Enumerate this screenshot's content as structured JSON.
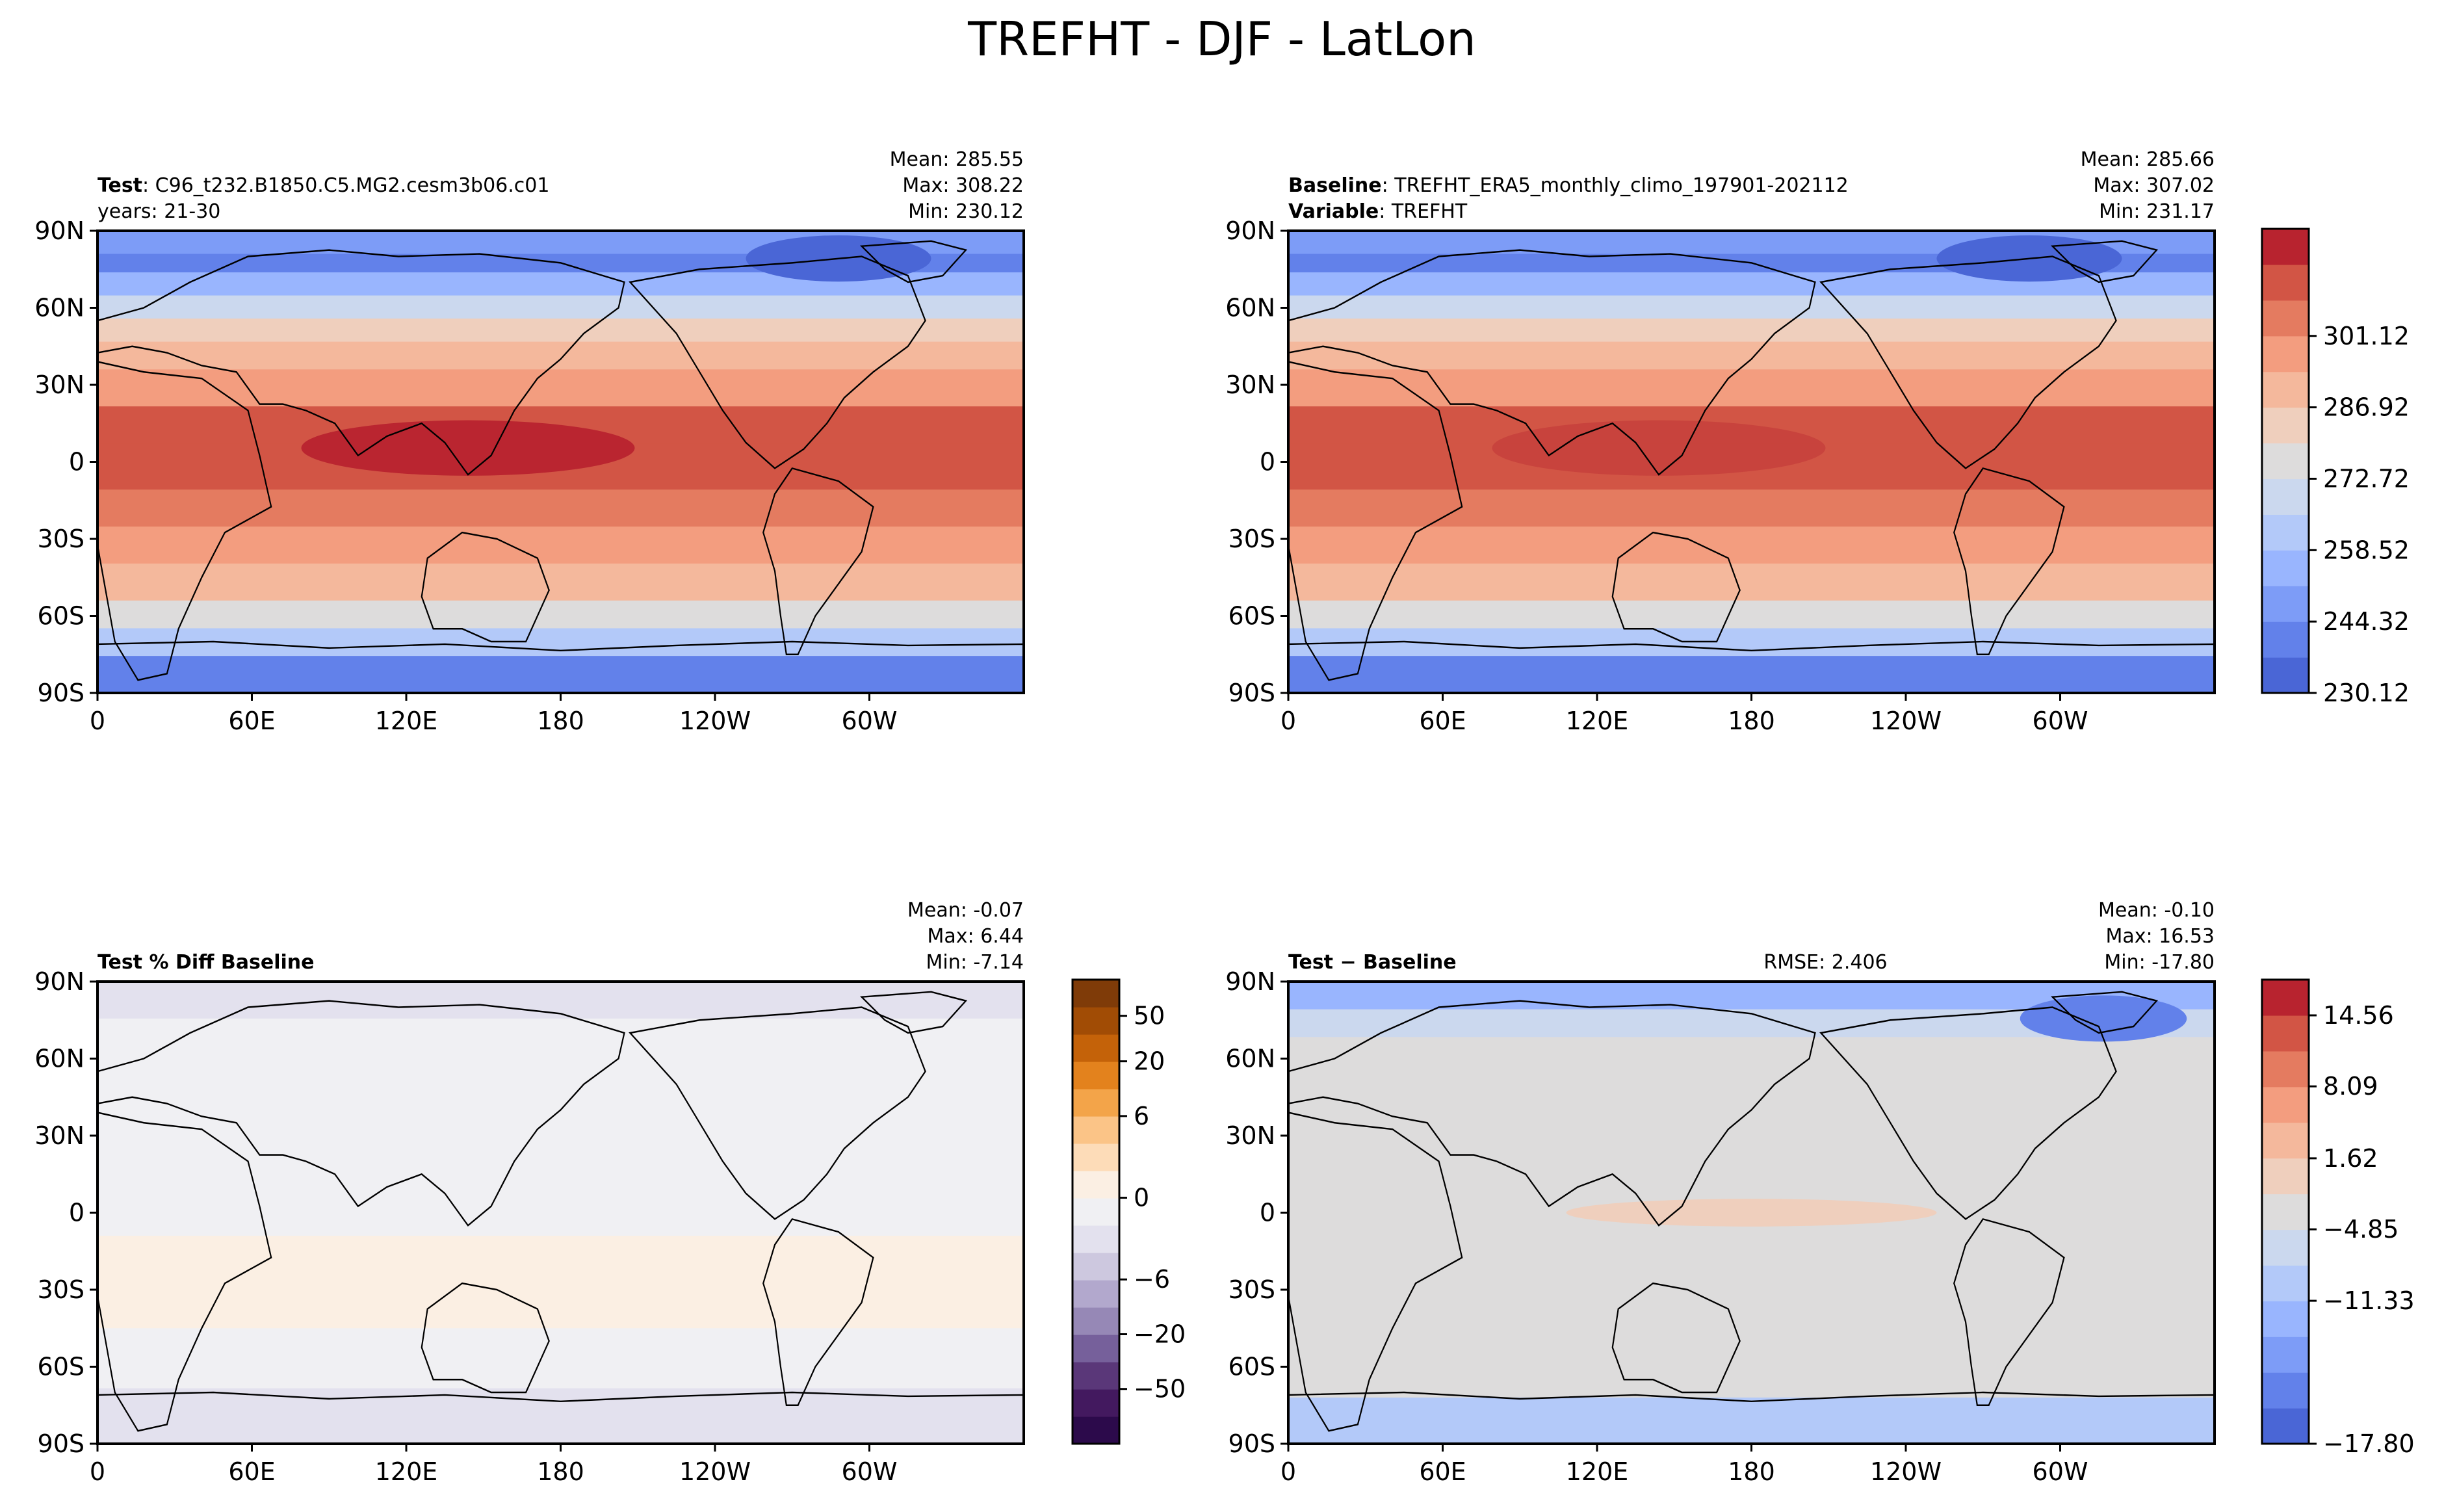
{
  "figure": {
    "title": "TREFHT - DJF - LatLon"
  },
  "colors": {
    "coolwarm": [
      "#4a66d6",
      "#6281ea",
      "#7d9cf7",
      "#99b5fe",
      "#b3c9f9",
      "#cbd8ee",
      "#dddcdc",
      "#efcfbd",
      "#f4b89c",
      "#f39d7f",
      "#e47b60",
      "#d25545",
      "#b8232f"
    ],
    "puor": [
      "#2c0a4b",
      "#43195f",
      "#5a3779",
      "#76609b",
      "#9688b6",
      "#b2a8cd",
      "#cdc8df",
      "#e3e1ee",
      "#f0f0f3",
      "#fbefe3",
      "#fddcb8",
      "#fbc487",
      "#f3a449",
      "#e3821d",
      "#c46209",
      "#a14c05",
      "#7f3b08"
    ],
    "land_outline": "#000000"
  },
  "chart_data": [
    {
      "type": "heatmap",
      "panel": "test",
      "header_left_bold": "Test",
      "header_left_text": ": C96_t232.B1850.C5.MG2.cesm3b06.c01",
      "header_left_line2": "years: 21-30",
      "stats": {
        "mean_label": "Mean: 285.55",
        "max_label": "Max: 308.22",
        "min_label": "Min: 230.12"
      },
      "mean": 285.55,
      "max": 308.22,
      "min": 230.12,
      "yticks": [
        "90N",
        "60N",
        "30N",
        "0",
        "30S",
        "60S",
        "90S"
      ],
      "xticks": [
        "0",
        "60E",
        "120E",
        "180",
        "120W",
        "60W"
      ],
      "xlim": [
        0,
        360
      ],
      "ylim": [
        -90,
        90
      ]
    },
    {
      "type": "heatmap",
      "panel": "baseline",
      "header_left_bold": "Baseline",
      "header_left_text": ": TREFHT_ERA5_monthly_climo_197901-202112",
      "header_left_bold2": "Variable",
      "header_left_text2": ": TREFHT",
      "stats": {
        "mean_label": "Mean: 285.66",
        "max_label": "Max: 307.02",
        "min_label": "Min: 231.17"
      },
      "mean": 285.66,
      "max": 307.02,
      "min": 231.17,
      "yticks": [
        "90N",
        "60N",
        "30N",
        "0",
        "30S",
        "60S",
        "90S"
      ],
      "xticks": [
        "0",
        "60E",
        "120E",
        "180",
        "120W",
        "60W"
      ],
      "colorbar_ticks": [
        "230.12",
        "244.32",
        "258.52",
        "272.72",
        "286.92",
        "301.12"
      ]
    },
    {
      "type": "heatmap",
      "panel": "pct_diff",
      "header_left_bold": "Test % Diff Baseline",
      "stats": {
        "mean_label": "Mean: -0.07",
        "max_label": "Max:  6.44",
        "min_label": "Min: -7.14"
      },
      "mean": -0.07,
      "max": 6.44,
      "min": -7.14,
      "yticks": [
        "90N",
        "60N",
        "30N",
        "0",
        "30S",
        "60S",
        "90S"
      ],
      "xticks": [
        "0",
        "60E",
        "120E",
        "180",
        "120W",
        "60W"
      ],
      "colorbar_ticks": [
        "50",
        "20",
        "6",
        "0",
        "−6",
        "−20",
        "−50"
      ]
    },
    {
      "type": "heatmap",
      "panel": "diff",
      "header_left_bold": "Test − Baseline",
      "header_center": "RMSE: 2.406",
      "stats": {
        "mean_label": "Mean: -0.10",
        "max_label": "Max: 16.53",
        "min_label": "Min: -17.80"
      },
      "mean": -0.1,
      "max": 16.53,
      "min": -17.8,
      "rmse": 2.406,
      "yticks": [
        "90N",
        "60N",
        "30N",
        "0",
        "30S",
        "60S",
        "90S"
      ],
      "xticks": [
        "0",
        "60E",
        "120E",
        "180",
        "120W",
        "60W"
      ],
      "colorbar_ticks": [
        "14.56",
        "8.09",
        "1.62",
        "−4.85",
        "−11.33",
        "−17.80"
      ]
    }
  ]
}
